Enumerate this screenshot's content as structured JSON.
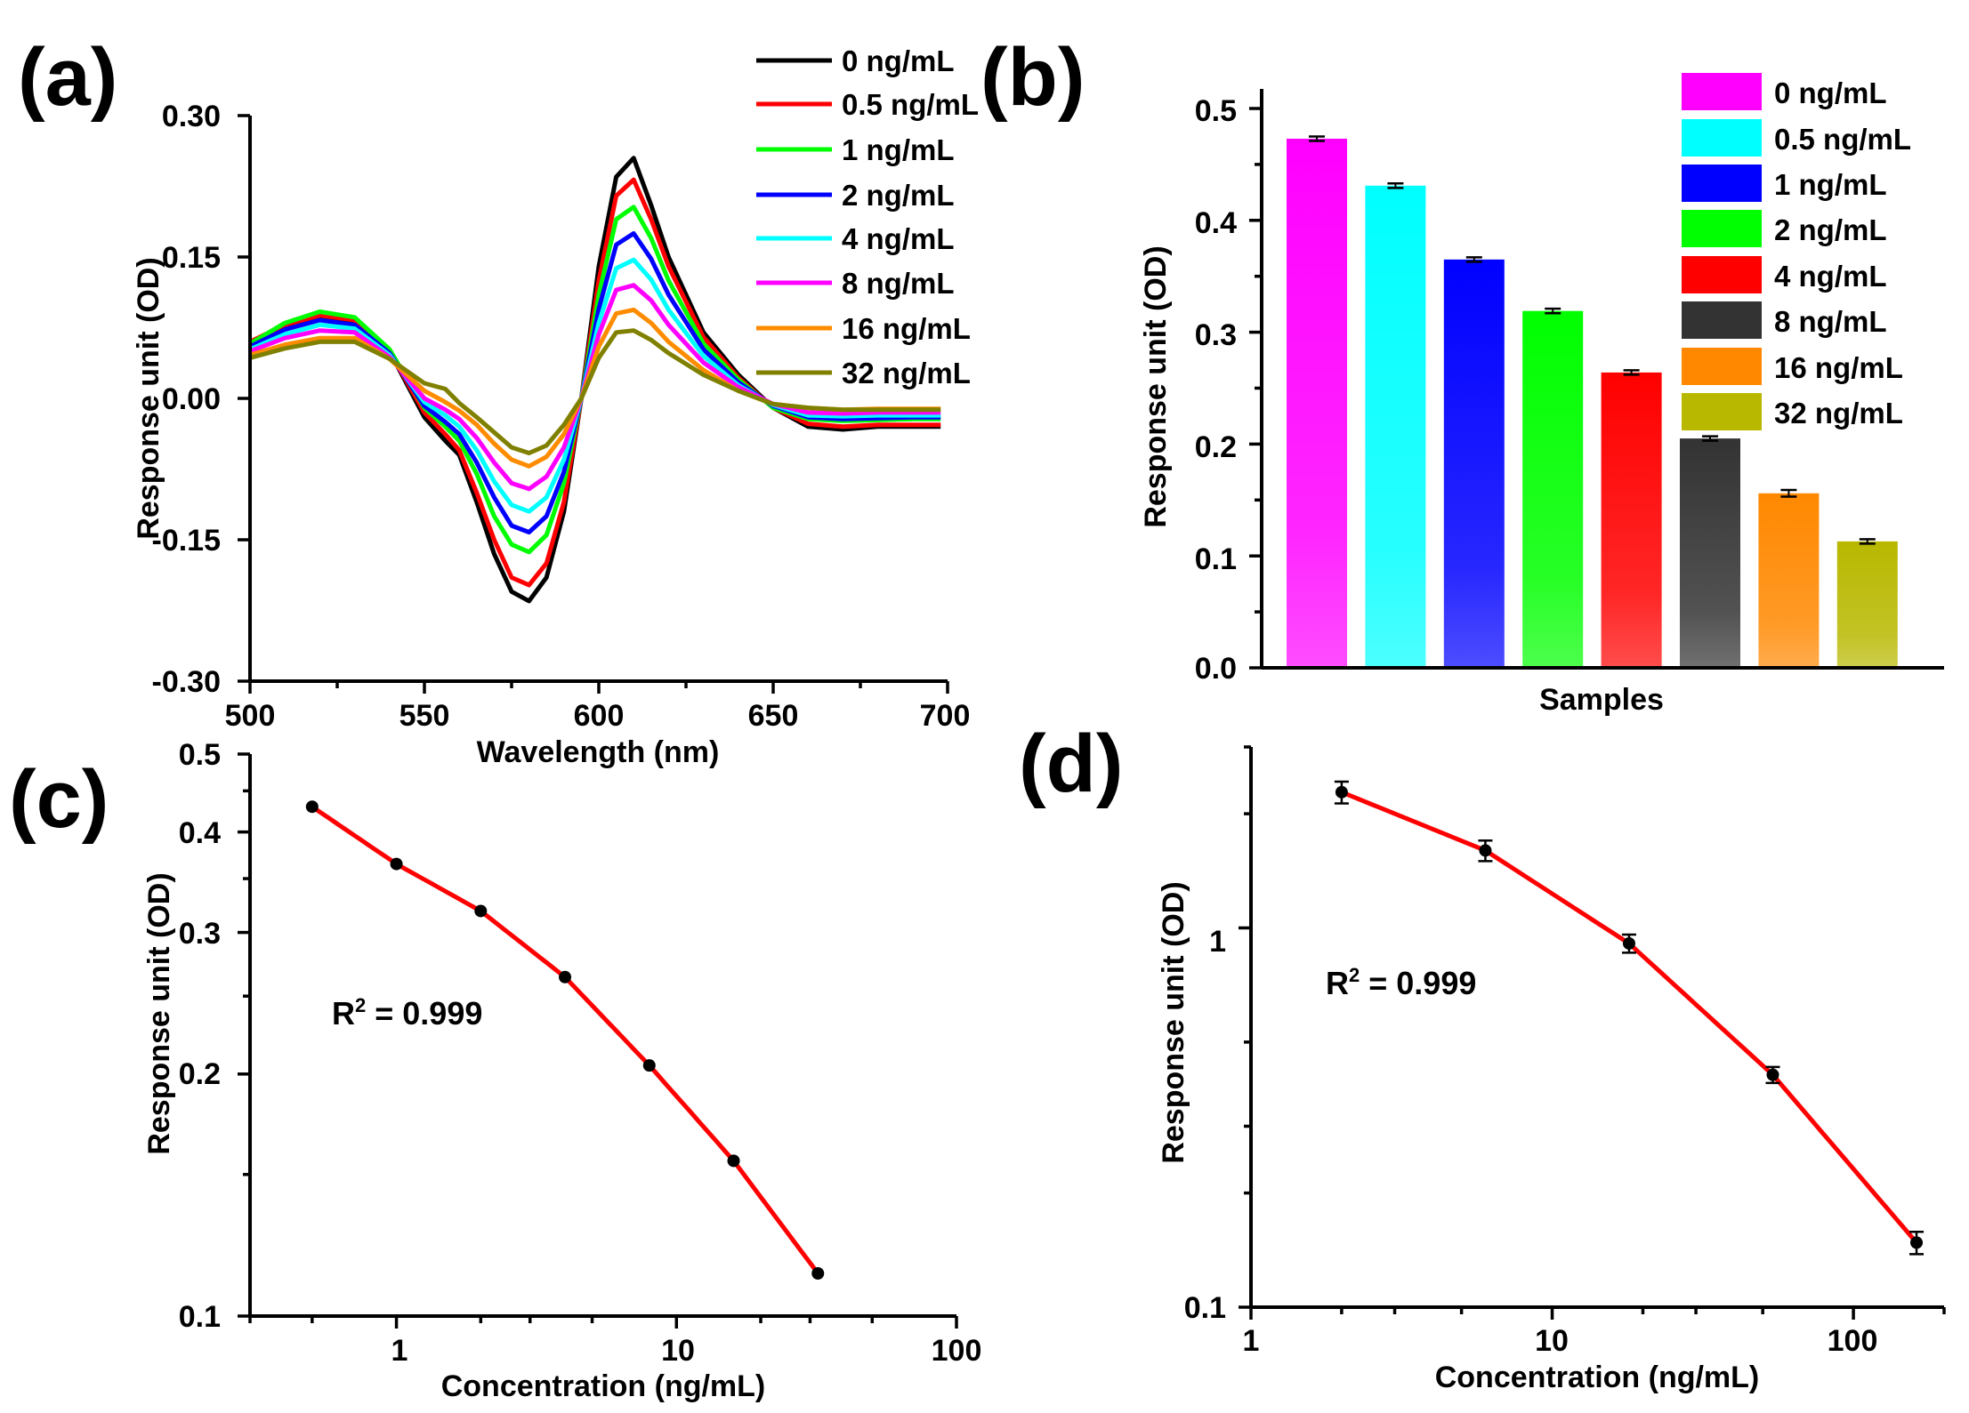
{
  "chart_data": [
    {
      "panel": "(a)",
      "type": "line",
      "xlabel": "Wavelength (nm)",
      "ylabel": "Response unit (OD)",
      "xlim": [
        500,
        700
      ],
      "ylim": [
        -0.3,
        0.3
      ],
      "xticks": [
        "500",
        "550",
        "600",
        "650",
        "700"
      ],
      "yticks": [
        "-0.30",
        "-0.15",
        "0.00",
        "0.15",
        "0.30"
      ],
      "x": [
        500,
        510,
        520,
        530,
        540,
        550,
        556,
        560,
        565,
        570,
        575,
        580,
        585,
        590,
        595,
        600,
        605,
        610,
        615,
        620,
        630,
        640,
        650,
        660,
        670,
        680,
        690,
        698
      ],
      "series": [
        {
          "name": "0 ng/mL",
          "color": "#000000",
          "values": [
            0.055,
            0.075,
            0.085,
            0.08,
            0.05,
            -0.02,
            -0.045,
            -0.06,
            -0.11,
            -0.165,
            -0.205,
            -0.215,
            -0.19,
            -0.12,
            0.0,
            0.14,
            0.235,
            0.255,
            0.205,
            0.15,
            0.07,
            0.025,
            -0.01,
            -0.03,
            -0.033,
            -0.03,
            -0.03,
            -0.03
          ]
        },
        {
          "name": "0.5 ng/mL",
          "color": "#ff0000",
          "values": [
            0.06,
            0.078,
            0.088,
            0.083,
            0.05,
            -0.015,
            -0.038,
            -0.055,
            -0.1,
            -0.15,
            -0.19,
            -0.198,
            -0.175,
            -0.11,
            0.0,
            0.125,
            0.215,
            0.232,
            0.19,
            0.14,
            0.065,
            0.022,
            -0.01,
            -0.027,
            -0.03,
            -0.028,
            -0.028,
            -0.028
          ]
        },
        {
          "name": "1 ng/mL",
          "color": "#00ff00",
          "values": [
            0.058,
            0.08,
            0.092,
            0.086,
            0.052,
            -0.01,
            -0.03,
            -0.045,
            -0.08,
            -0.125,
            -0.155,
            -0.163,
            -0.145,
            -0.09,
            0.0,
            0.11,
            0.19,
            0.203,
            0.17,
            0.125,
            0.058,
            0.02,
            -0.01,
            -0.022,
            -0.024,
            -0.023,
            -0.022,
            -0.022
          ]
        },
        {
          "name": "2 ng/mL",
          "color": "#0000ff",
          "values": [
            0.055,
            0.073,
            0.083,
            0.078,
            0.048,
            -0.008,
            -0.025,
            -0.038,
            -0.068,
            -0.105,
            -0.135,
            -0.142,
            -0.125,
            -0.078,
            0.0,
            0.095,
            0.163,
            0.175,
            0.148,
            0.11,
            0.052,
            0.017,
            -0.008,
            -0.02,
            -0.022,
            -0.021,
            -0.02,
            -0.02
          ]
        },
        {
          "name": "4 ng/mL",
          "color": "#00ffff",
          "values": [
            0.052,
            0.068,
            0.078,
            0.074,
            0.046,
            -0.004,
            -0.018,
            -0.03,
            -0.055,
            -0.088,
            -0.113,
            -0.12,
            -0.105,
            -0.065,
            0.0,
            0.08,
            0.138,
            0.147,
            0.126,
            0.094,
            0.045,
            0.014,
            -0.007,
            -0.018,
            -0.019,
            -0.018,
            -0.018,
            -0.018
          ]
        },
        {
          "name": "8 ng/mL",
          "color": "#ff00ff",
          "values": [
            0.05,
            0.064,
            0.072,
            0.07,
            0.044,
            0.0,
            -0.012,
            -0.022,
            -0.042,
            -0.068,
            -0.09,
            -0.096,
            -0.083,
            -0.052,
            0.0,
            0.068,
            0.115,
            0.12,
            0.104,
            0.078,
            0.038,
            0.012,
            -0.006,
            -0.015,
            -0.016,
            -0.015,
            -0.015,
            -0.015
          ]
        },
        {
          "name": "16 ng/mL",
          "color": "#ff8c00",
          "values": [
            0.046,
            0.057,
            0.064,
            0.064,
            0.042,
            0.008,
            -0.004,
            -0.013,
            -0.028,
            -0.048,
            -0.065,
            -0.072,
            -0.062,
            -0.038,
            0.0,
            0.055,
            0.09,
            0.094,
            0.08,
            0.06,
            0.03,
            0.008,
            -0.006,
            -0.01,
            -0.012,
            -0.011,
            -0.011,
            -0.011
          ]
        },
        {
          "name": "32 ng/mL",
          "color": "#808000",
          "values": [
            0.043,
            0.053,
            0.06,
            0.06,
            0.042,
            0.016,
            0.01,
            -0.005,
            -0.02,
            -0.036,
            -0.052,
            -0.058,
            -0.05,
            -0.028,
            0.0,
            0.043,
            0.07,
            0.072,
            0.062,
            0.048,
            0.025,
            0.008,
            -0.006,
            -0.01,
            -0.012,
            -0.012,
            -0.012,
            -0.012
          ]
        }
      ]
    },
    {
      "panel": "(b)",
      "type": "bar",
      "xlabel": "Samples",
      "ylabel": "Response unit (OD)",
      "ylim": [
        0.0,
        0.5
      ],
      "yticks": [
        "0.0",
        "0.1",
        "0.2",
        "0.3",
        "0.4",
        "0.5"
      ],
      "categories": [
        "0 ng/mL",
        "0.5 ng/mL",
        "1 ng/mL",
        "2 ng/mL",
        "4 ng/mL",
        "8 ng/mL",
        "16 ng/mL",
        "32 ng/mL"
      ],
      "values": [
        0.473,
        0.431,
        0.365,
        0.319,
        0.264,
        0.205,
        0.156,
        0.113
      ],
      "errors": [
        0.002,
        0.002,
        0.002,
        0.002,
        0.002,
        0.002,
        0.003,
        0.002
      ],
      "colors": [
        "#ff00ff",
        "#00ffff",
        "#0000ff",
        "#00ff00",
        "#ff0000",
        "#333333",
        "#ff8800",
        "#b8b800"
      ]
    },
    {
      "panel": "(c)",
      "type": "scatter",
      "xlabel": "Concentration (ng/mL)",
      "ylabel": "Response unit (OD)",
      "xscale": "log",
      "yscale": "log",
      "xlim": [
        0.3,
        100
      ],
      "ylim": [
        0.1,
        0.5
      ],
      "xticks": [
        "1",
        "10",
        "100"
      ],
      "yticks": [
        "0.1",
        "0.2",
        "0.3",
        "0.4",
        "0.5"
      ],
      "annotation": {
        "base": "R",
        "sup": "2",
        "rest": " = 0.999"
      },
      "points": {
        "x": [
          0.5,
          1,
          2,
          4,
          8,
          16,
          32
        ],
        "y": [
          0.43,
          0.365,
          0.319,
          0.264,
          0.205,
          0.156,
          0.113
        ]
      },
      "fit_color": "#ff0000"
    },
    {
      "panel": "(d)",
      "type": "scatter",
      "xlabel": "Concentration (ng/mL)",
      "ylabel": "Response unit (OD)",
      "xscale": "log",
      "yscale": "log",
      "xlim": [
        1,
        200
      ],
      "ylim": [
        0.1,
        3.0
      ],
      "xticks": [
        "1",
        "10",
        "100"
      ],
      "yticks": [
        "0.1",
        "1"
      ],
      "annotation": {
        "base": "R",
        "sup": "2",
        "rest": " = 0.999"
      },
      "points": {
        "x": [
          2,
          6,
          18,
          54,
          162
        ],
        "y": [
          2.28,
          1.6,
          0.91,
          0.41,
          0.148
        ],
        "err": [
          0.15,
          0.1,
          0.05,
          0.02,
          0.01
        ]
      },
      "fit_color": "#ff0000"
    }
  ]
}
